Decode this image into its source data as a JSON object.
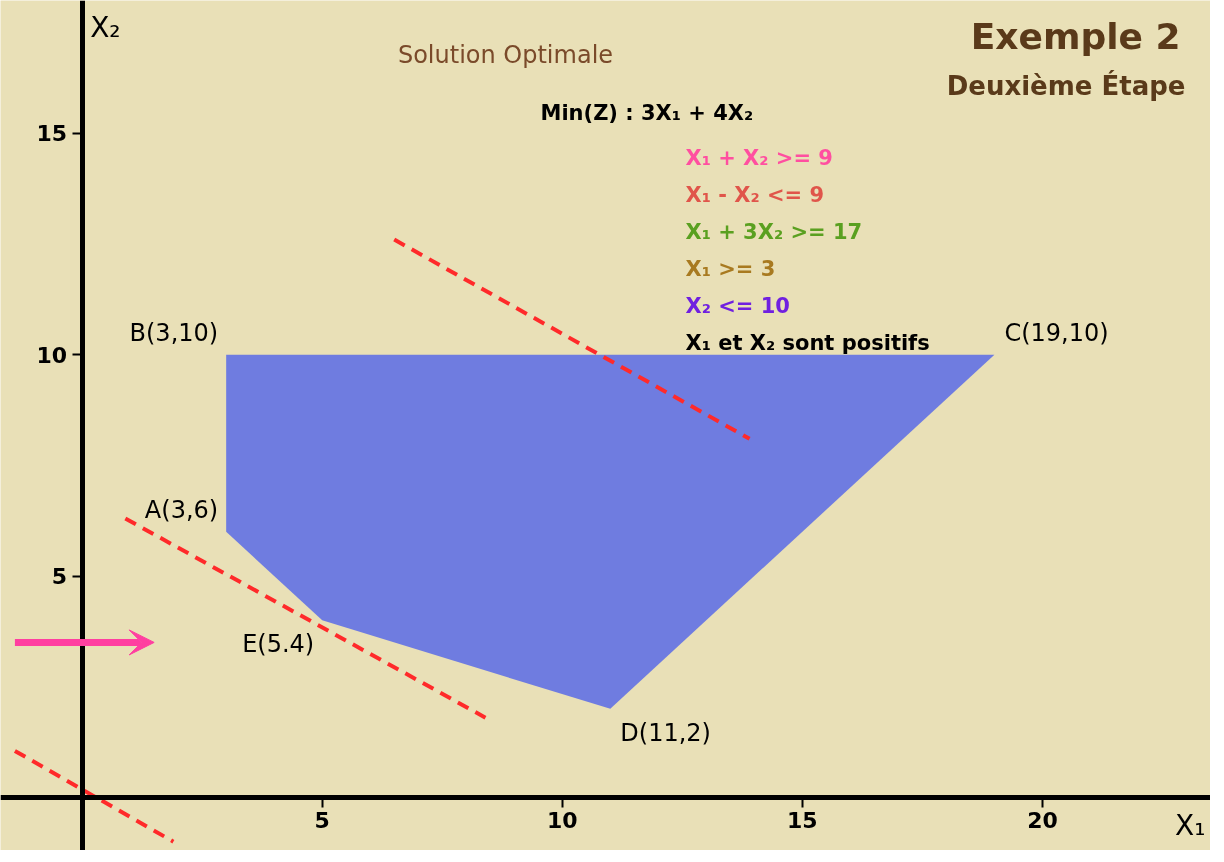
{
  "chart_data": {
    "type": "line",
    "title": "Exemple 2",
    "subtitle": "Deuxième Étape",
    "xlabel": "X₁",
    "ylabel": "X₂",
    "xlim": [
      -1.7,
      23.5
    ],
    "ylim": [
      -1.2,
      18
    ],
    "xticks": [
      5,
      10,
      15,
      20
    ],
    "yticks": [
      5,
      10,
      15
    ],
    "line_style": "dashed",
    "series": [
      {
        "type": "area",
        "color": "#6f7ce0",
        "x": [
          3,
          3,
          19,
          11,
          5,
          3
        ],
        "values": [
          6,
          10,
          10,
          2,
          4,
          6
        ]
      },
      {
        "color": "#ff2a2a",
        "x": [
          -1.4,
          1.9
        ],
        "values": [
          1.05,
          -1.0
        ]
      },
      {
        "color": "#ff2a2a",
        "x": [
          0.9,
          8.4
        ],
        "values": [
          6.3,
          1.8
        ]
      },
      {
        "color": "#ff2a2a",
        "x": [
          6.5,
          13.9
        ],
        "values": [
          12.6,
          8.1
        ]
      }
    ],
    "annotations": [
      "Solution Optimale",
      "Min(Z) : 3X₁ + 4X₂",
      "X₁ + X₂ >= 9",
      "X₁ - X₂ <= 9",
      "X₁ + 3X₂ >= 17",
      "X₁ >= 3",
      "X₂ <= 10",
      "X₁ et X₂ sont positifs",
      {
        "text": "A(3,6)",
        "x": 3,
        "y": 6
      },
      {
        "text": "B(3,10)",
        "x": 3,
        "y": 10
      },
      {
        "text": "C(19,10)",
        "x": 19,
        "y": 10
      },
      {
        "text": "D(11,2)",
        "x": 11,
        "y": 2
      },
      {
        "text": "E(5.4)",
        "x": 5,
        "y": 4
      }
    ]
  }
}
